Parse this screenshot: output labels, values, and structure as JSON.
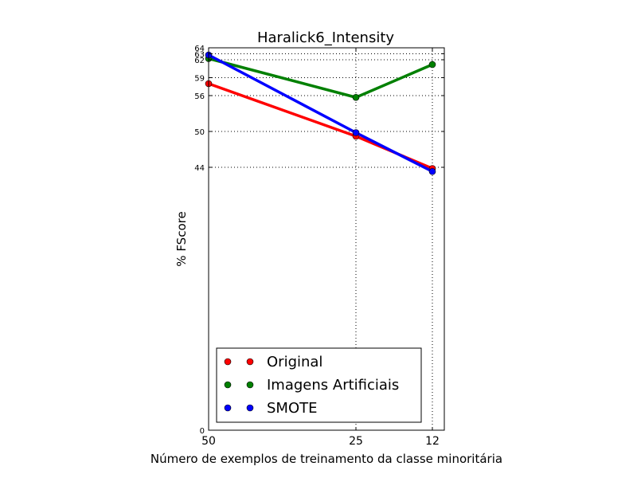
{
  "chart_data": {
    "type": "line",
    "title": "Haralick6_Intensity",
    "xlabel": "Número de exemplos de treinamento da classe minoritária",
    "ylabel": "% FScore",
    "x": [
      50,
      25,
      12
    ],
    "x_tick_labels": [
      "50",
      "25",
      "12"
    ],
    "y_ticks": [
      0,
      44,
      50,
      56,
      59,
      62,
      63,
      64
    ],
    "y_tick_labels": [
      "0",
      "44",
      "50",
      "56",
      "59",
      "62",
      "63",
      "64"
    ],
    "ylim": [
      0,
      64
    ],
    "grid": true,
    "legend_position": "lower-center",
    "series": [
      {
        "name": "Original",
        "color": "#ff0000",
        "values": [
          58.0,
          49.2,
          43.8
        ]
      },
      {
        "name": "Imagens Artificiais",
        "color": "#008000",
        "values": [
          62.2,
          55.7,
          61.2
        ]
      },
      {
        "name": "SMOTE",
        "color": "#0000ff",
        "values": [
          62.8,
          49.8,
          43.3
        ]
      }
    ]
  }
}
